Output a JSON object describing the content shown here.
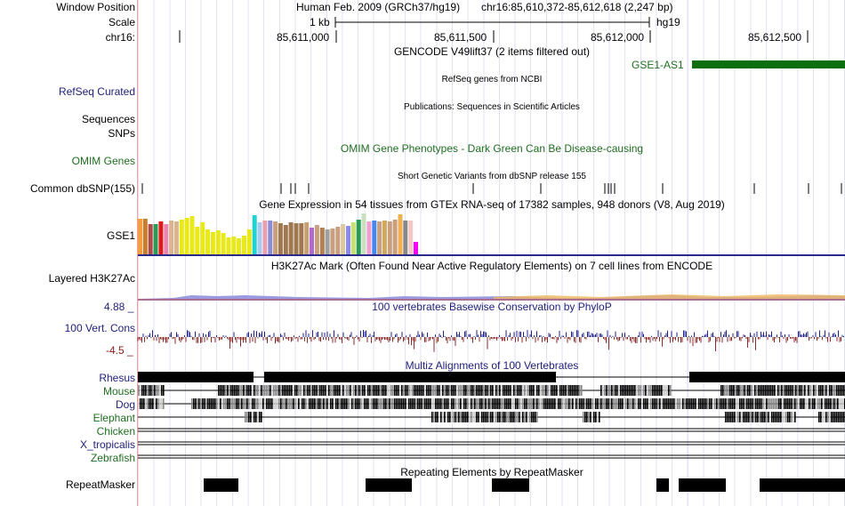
{
  "header": {
    "window_position_label": "Window Position",
    "scale_label": "Scale",
    "chrom_label": "chr16:",
    "assembly": "Human Feb. 2009 (GRCh37/hg19)",
    "position": "chr16:85,610,372-85,612,618 (2,247 bp)",
    "scale_text": "1 kb",
    "db": "hg19",
    "ticks": [
      "85,611,000",
      "85,611,500",
      "85,612,000",
      "85,612,500"
    ]
  },
  "tracks": {
    "gencode": {
      "title": "GENCODE V49lift37 (2 items filtered out)",
      "item": "GSE1-AS1",
      "color": "#0d6e0d"
    },
    "refseq": {
      "label": "RefSeq Curated",
      "title": "RefSeq genes from NCBI"
    },
    "pubs": {
      "label": "Sequences",
      "title": "Publications: Sequences in Scientific Articles"
    },
    "snps_label": "SNPs",
    "omim": {
      "label": "OMIM Genes",
      "title": "OMIM Gene Phenotypes - Dark Green Can Be Disease-causing"
    },
    "dbsnp": {
      "label": "Common dbSNP(155)",
      "title": "Short Genetic Variants from dbSNP release 155"
    },
    "gtex": {
      "label": "GSE1",
      "title": "Gene Expression in 54 tissues from GTEx RNA-seq of 17382 samples, 948 donors (V8, Aug 2019)"
    },
    "h3k27ac": {
      "label": "Layered H3K27Ac",
      "title": "H3K27Ac Mark (Often Found Near Active Regulatory Elements) on 7 cell lines from ENCODE"
    },
    "cons": {
      "label": "100 Vert. Cons",
      "max": "4.88 _",
      "min": "-4.5 _",
      "title": "100 vertebrates Basewise Conservation by PhyloP"
    },
    "multiz": {
      "title": "Multiz Alignments of 100 Vertebrates",
      "species": [
        "Rhesus",
        "Mouse",
        "Dog",
        "Elephant",
        "Chicken",
        "X_tropicalis",
        "Zebrafish"
      ]
    },
    "rmsk": {
      "label": "RepeatMasker",
      "title": "Repeating Elements by RepeatMasker"
    }
  },
  "gtex_colors": [
    "#f59d3d",
    "#c87d2b",
    "#b04a4a",
    "#2a9a55",
    "#e01a1a",
    "#ee82b0",
    "#d9b48f",
    "#d9b48f",
    "#e8e81a",
    "#e8e81a",
    "#e8e81a",
    "#e8e81a",
    "#e8e81a",
    "#e8e81a",
    "#e8e81a",
    "#e8e81a",
    "#e8e81a",
    "#e8e81a",
    "#e8e81a",
    "#e8e81a",
    "#e8e81a",
    "#e8e81a",
    "#1fd3d3",
    "#a8c8f0",
    "#e8a0b0",
    "#8b8bd6",
    "#c8a080",
    "#a07850",
    "#a07850",
    "#a07850",
    "#a07850",
    "#a07850",
    "#c8a070",
    "#b06ad0",
    "#c8a080",
    "#b08050",
    "#a0a0a0",
    "#c8a080",
    "#c8a080",
    "#dcc8a0",
    "#8b8bef",
    "#c8e070",
    "#2a9a55",
    "#c8e0c0",
    "#f0a0d0",
    "#4488ee",
    "#c8a080",
    "#d0a860",
    "#c8a080",
    "#c8a080",
    "#f0b050",
    "#888888",
    "#f0c8c8",
    "#ff00ff"
  ],
  "gtex_values": [
    40,
    40,
    34,
    34,
    37,
    34,
    38,
    37,
    39,
    41,
    43,
    31,
    36,
    28,
    25,
    27,
    24,
    19,
    20,
    18,
    21,
    28,
    44,
    36,
    38,
    38,
    37,
    35,
    33,
    36,
    35,
    35,
    36,
    30,
    33,
    30,
    28,
    29,
    31,
    34,
    32,
    36,
    39,
    46,
    37,
    38,
    37,
    38,
    37,
    39,
    45,
    38,
    38,
    14
  ]
}
